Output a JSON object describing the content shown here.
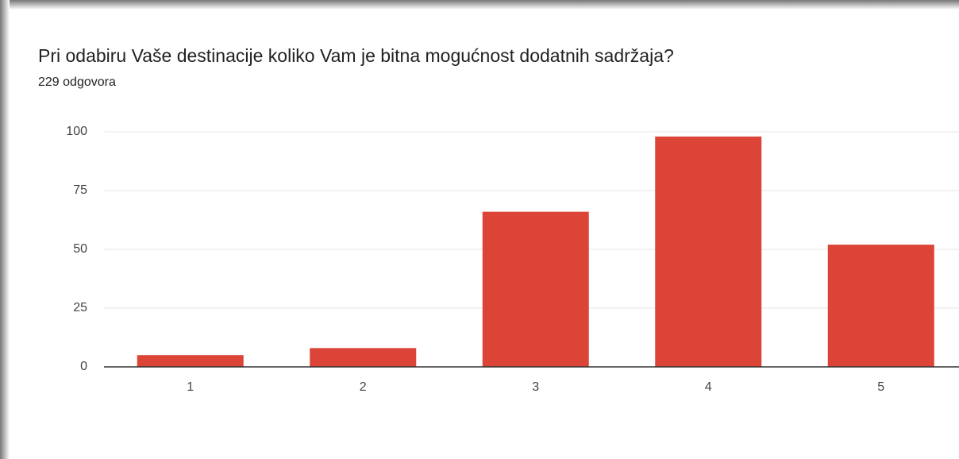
{
  "chart_data": {
    "type": "bar",
    "title": "Pri odabiru Vaše destinacije koliko Vam je bitna mogućnost dodatnih sadržaja?",
    "subtitle": "229 odgovora",
    "categories": [
      "1",
      "2",
      "3",
      "4",
      "5"
    ],
    "values": [
      5,
      8,
      66,
      98,
      52
    ],
    "color": "#db4437",
    "ylim": [
      0,
      100
    ],
    "yticks": [
      0,
      25,
      50,
      75,
      100
    ],
    "grid": true
  }
}
